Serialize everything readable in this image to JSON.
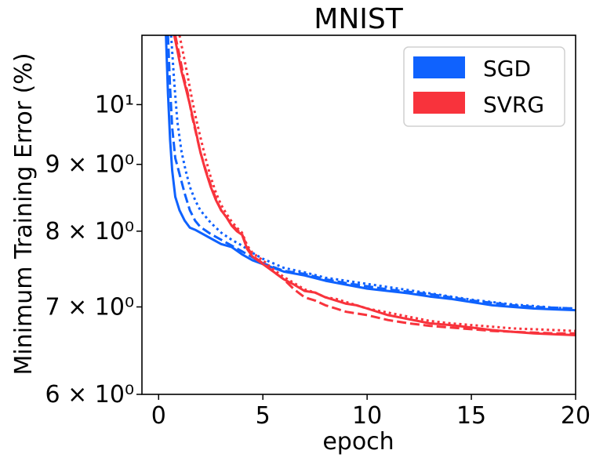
{
  "chart_data": {
    "type": "line",
    "title": "MNIST",
    "xlabel": "epoch",
    "ylabel": "Minimum Training Error (%)",
    "xlim": [
      -0.8,
      20
    ],
    "ylim": [
      6.0,
      11.3
    ],
    "yscale": "log",
    "xticks": [
      {
        "value": 0,
        "label": "0"
      },
      {
        "value": 5,
        "label": "5"
      },
      {
        "value": 10,
        "label": "10"
      },
      {
        "value": 15,
        "label": "15"
      },
      {
        "value": 20,
        "label": "20"
      }
    ],
    "yticks": [
      {
        "value": 6,
        "label": "6 × 10⁰"
      },
      {
        "value": 7,
        "label": "7 × 10⁰"
      },
      {
        "value": 8,
        "label": "8 × 10⁰"
      },
      {
        "value": 9,
        "label": "9 × 10⁰"
      },
      {
        "value": 10,
        "label": "10¹"
      }
    ],
    "grid": false,
    "legend": {
      "position": "top-right",
      "entries": [
        {
          "label": "SGD",
          "color": "#0f62fe"
        },
        {
          "label": "SVRG",
          "color": "#f8333c"
        }
      ]
    },
    "series": [
      {
        "name": "SGD",
        "style": "solid",
        "color": "#0f62fe",
        "x": [
          0.35,
          0.45,
          0.55,
          0.65,
          0.8,
          1.0,
          1.25,
          1.5,
          1.75,
          2.0,
          2.5,
          3.0,
          3.5,
          4.0,
          4.5,
          5.0,
          6.0,
          7.0,
          8.0,
          9.0,
          10.0,
          11.0,
          12.0,
          13.0,
          14.0,
          15.0,
          16.0,
          17.0,
          18.0,
          19.0,
          20.0
        ],
        "y": [
          11.3,
          10.2,
          9.4,
          8.9,
          8.5,
          8.3,
          8.15,
          8.05,
          8.02,
          7.98,
          7.9,
          7.82,
          7.78,
          7.68,
          7.6,
          7.55,
          7.45,
          7.4,
          7.33,
          7.28,
          7.23,
          7.2,
          7.17,
          7.13,
          7.1,
          7.06,
          7.02,
          7.0,
          6.98,
          6.97,
          6.96
        ]
      },
      {
        "name": "SGD",
        "style": "dashed",
        "color": "#0f62fe",
        "x": [
          0.45,
          0.55,
          0.65,
          0.8,
          1.0,
          1.25,
          1.5,
          1.75,
          2.0,
          2.5,
          3.0,
          3.5,
          4.0,
          4.5,
          5.0,
          6.0,
          7.0,
          8.0,
          9.0,
          10.0,
          11.0,
          12.0,
          13.0,
          14.0,
          15.0,
          16.0,
          17.0,
          18.0,
          19.0,
          20.0
        ],
        "y": [
          11.3,
          10.3,
          9.6,
          9.1,
          8.85,
          8.55,
          8.3,
          8.15,
          8.06,
          7.96,
          7.88,
          7.8,
          7.72,
          7.64,
          7.56,
          7.46,
          7.42,
          7.35,
          7.3,
          7.26,
          7.22,
          7.19,
          7.16,
          7.12,
          7.08,
          7.05,
          7.02,
          7.0,
          6.99,
          6.98
        ]
      },
      {
        "name": "SGD",
        "style": "dotted",
        "color": "#0f62fe",
        "x": [
          0.6,
          0.75,
          0.9,
          1.1,
          1.3,
          1.5,
          1.75,
          2.0,
          2.5,
          3.0,
          3.5,
          4.0,
          4.5,
          5.0,
          6.0,
          7.0,
          8.0,
          9.0,
          10.0,
          11.0,
          12.0,
          13.0,
          14.0,
          15.0,
          16.0,
          17.0,
          18.0,
          19.0,
          20.0
        ],
        "y": [
          11.3,
          10.4,
          9.7,
          9.2,
          8.9,
          8.65,
          8.45,
          8.3,
          8.12,
          7.98,
          7.88,
          7.8,
          7.7,
          7.62,
          7.5,
          7.44,
          7.37,
          7.33,
          7.29,
          7.25,
          7.21,
          7.17,
          7.13,
          7.09,
          7.06,
          7.03,
          7.01,
          6.99,
          6.98
        ]
      },
      {
        "name": "SVRG",
        "style": "solid",
        "color": "#f8333c",
        "x": [
          0.75,
          0.9,
          1.1,
          1.3,
          1.5,
          1.75,
          2.0,
          2.25,
          2.5,
          2.75,
          3.0,
          3.25,
          3.5,
          3.75,
          4.0,
          4.25,
          4.5,
          5.0,
          5.5,
          6.0,
          6.5,
          7.0,
          7.5,
          8.0,
          8.5,
          9.0,
          9.5,
          10.0,
          11.0,
          12.0,
          13.0,
          14.0,
          15.0,
          16.0,
          17.0,
          18.0,
          19.0,
          20.0
        ],
        "y": [
          11.3,
          11.0,
          10.6,
          10.3,
          10.0,
          9.6,
          9.2,
          8.9,
          8.65,
          8.45,
          8.3,
          8.2,
          8.08,
          8.0,
          7.95,
          7.75,
          7.65,
          7.55,
          7.45,
          7.35,
          7.28,
          7.2,
          7.18,
          7.12,
          7.08,
          7.04,
          7.02,
          6.98,
          6.9,
          6.85,
          6.8,
          6.78,
          6.75,
          6.72,
          6.7,
          6.68,
          6.67,
          6.66
        ]
      },
      {
        "name": "SVRG",
        "style": "dashed",
        "color": "#f8333c",
        "x": [
          0.8,
          1.0,
          1.2,
          1.4,
          1.6,
          1.8,
          2.0,
          2.25,
          2.5,
          2.75,
          3.0,
          3.25,
          3.5,
          3.75,
          4.0,
          4.25,
          4.5,
          5.0,
          5.5,
          6.0,
          6.5,
          7.0,
          7.5,
          8.0,
          8.5,
          9.0,
          9.5,
          10.0,
          11.0,
          12.0,
          13.0,
          14.0,
          15.0,
          16.0,
          17.0,
          18.0,
          19.0,
          20.0
        ],
        "y": [
          11.3,
          10.9,
          10.5,
          10.2,
          9.8,
          9.5,
          9.2,
          8.92,
          8.68,
          8.47,
          8.3,
          8.2,
          8.1,
          8.02,
          7.96,
          7.78,
          7.66,
          7.56,
          7.45,
          7.35,
          7.22,
          7.12,
          7.08,
          7.02,
          6.98,
          6.94,
          6.92,
          6.9,
          6.84,
          6.8,
          6.77,
          6.75,
          6.73,
          6.71,
          6.7,
          6.69,
          6.68,
          6.68
        ]
      },
      {
        "name": "SVRG",
        "style": "dotted",
        "color": "#f8333c",
        "x": [
          1.0,
          1.2,
          1.4,
          1.6,
          1.8,
          2.0,
          2.25,
          2.5,
          2.75,
          3.0,
          3.25,
          3.5,
          3.75,
          4.0,
          4.25,
          4.5,
          5.0,
          5.5,
          6.0,
          6.5,
          7.0,
          7.5,
          8.0,
          8.5,
          9.0,
          9.5,
          10.0,
          11.0,
          12.0,
          13.0,
          14.0,
          15.0,
          16.0,
          17.0,
          18.0,
          19.0,
          20.0
        ],
        "y": [
          11.3,
          10.9,
          10.5,
          10.1,
          9.75,
          9.45,
          9.1,
          8.8,
          8.56,
          8.38,
          8.25,
          8.14,
          8.05,
          7.98,
          7.8,
          7.7,
          7.6,
          7.48,
          7.38,
          7.3,
          7.22,
          7.18,
          7.12,
          7.1,
          7.06,
          7.02,
          6.98,
          6.93,
          6.88,
          6.83,
          6.8,
          6.78,
          6.76,
          6.74,
          6.73,
          6.72,
          6.71
        ]
      }
    ]
  }
}
